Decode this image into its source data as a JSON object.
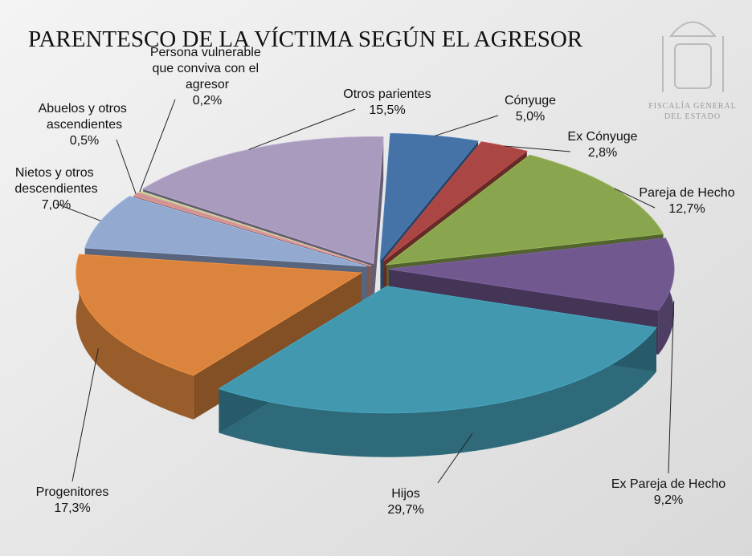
{
  "chart_data": {
    "type": "pie",
    "title": "PARENTESCO DE LA VÍCTIMA SEGÚN EL AGRESOR",
    "logo_text": [
      "FISCALÍA GENERAL",
      "DEL ESTADO"
    ],
    "categories": [
      "Cónyuge",
      "Ex Cónyuge",
      "Pareja de Hecho",
      "Ex Pareja de Hecho",
      "Hijos",
      "Progenitores",
      "Nietos y otros descendientes",
      "Abuelos y otros ascendientes",
      "Persona vulnerable que conviva con el agresor",
      "Otros parientes"
    ],
    "values": [
      5.0,
      2.8,
      12.7,
      9.2,
      29.7,
      17.3,
      7.0,
      0.5,
      0.2,
      15.5
    ],
    "value_labels": [
      "5,0%",
      "2,8%",
      "12,7%",
      "9,2%",
      "29,7%",
      "17,3%",
      "7,0%",
      "0,5%",
      "0,2%",
      "15,5%"
    ],
    "colors": [
      "#4572a7",
      "#aa4643",
      "#89a54e",
      "#71588f",
      "#4198af",
      "#db843d",
      "#93a9cf",
      "#d19392",
      "#b9cd96",
      "#a99bbd"
    ]
  }
}
